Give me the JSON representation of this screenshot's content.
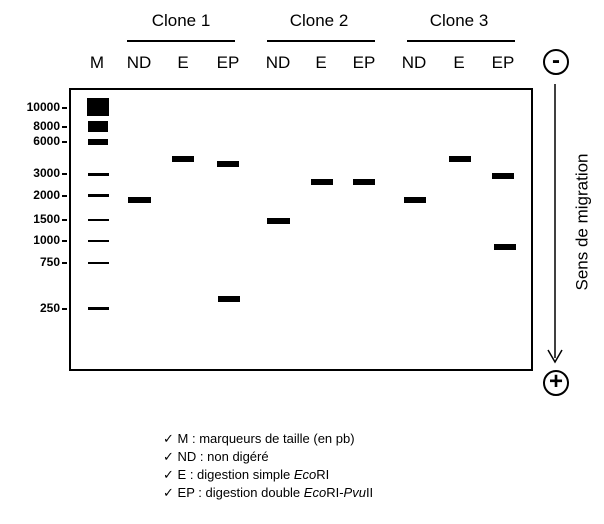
{
  "clones": [
    {
      "title": "Clone 1"
    },
    {
      "title": "Clone 2"
    },
    {
      "title": "Clone 3"
    }
  ],
  "lanes": [
    "M",
    "ND",
    "E",
    "EP",
    "ND",
    "E",
    "EP",
    "ND",
    "E",
    "EP"
  ],
  "size_labels": [
    "10000",
    "8000",
    "6000",
    "3000",
    "2000",
    "1500",
    "1000",
    "750",
    "250"
  ],
  "electrodes": {
    "minus": "-",
    "plus": "+"
  },
  "migration_label": "Sens de migration",
  "legend": [
    {
      "check": "✓",
      "pre": "M : marqueurs de taille (en pb)",
      "em": "",
      "post": "",
      "em2": "",
      "post2": ""
    },
    {
      "check": "✓",
      "pre": "ND : non digéré",
      "em": "",
      "post": "",
      "em2": "",
      "post2": ""
    },
    {
      "check": "✓",
      "pre": "E : digestion simple ",
      "em": "Eco",
      "post": "RI",
      "em2": "",
      "post2": ""
    },
    {
      "check": "✓",
      "pre": "EP : digestion double ",
      "em": "Eco",
      "post": "RI-",
      "em2": "Pvu",
      "post2": "II"
    }
  ]
}
